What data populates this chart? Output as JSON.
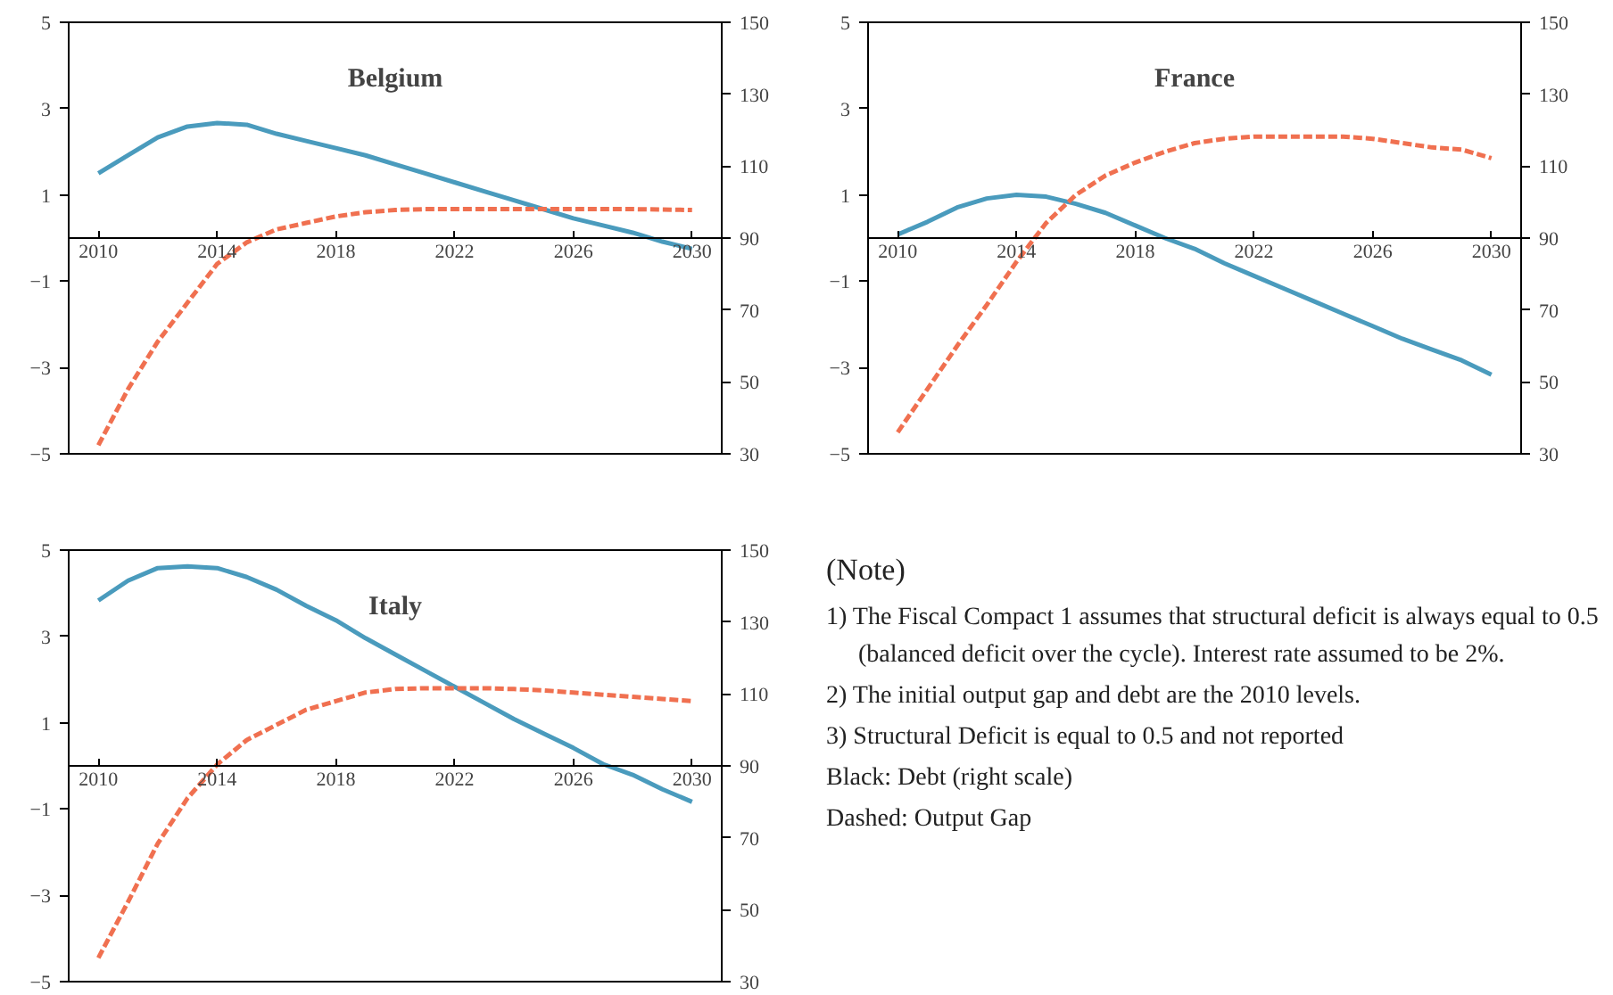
{
  "chart_data": [
    {
      "type": "line",
      "title": "Belgium",
      "x": [
        2010,
        2011,
        2012,
        2013,
        2014,
        2015,
        2016,
        2017,
        2018,
        2019,
        2020,
        2021,
        2022,
        2023,
        2024,
        2025,
        2026,
        2027,
        2028,
        2029,
        2030
      ],
      "xlim": [
        2009,
        2031
      ],
      "xticks": [
        2010,
        2014,
        2018,
        2022,
        2026,
        2030
      ],
      "ylim": [
        -5,
        5
      ],
      "yticks": [
        -5,
        -3,
        -1,
        1,
        3,
        5
      ],
      "y2lim": [
        30,
        150
      ],
      "y2ticks": [
        30,
        50,
        70,
        90,
        110,
        130,
        150
      ],
      "series": [
        {
          "color": "#4a9bbd",
          "axis": "y2",
          "line_style": "solid",
          "values": [
            108,
            113,
            118,
            121,
            122,
            121.5,
            119,
            117,
            115,
            113,
            110.5,
            108,
            105.5,
            103,
            100.5,
            98,
            95.5,
            93.5,
            91.5,
            89,
            87
          ]
        },
        {
          "color": "#f07050",
          "line_style": "dashed",
          "values": [
            -4.8,
            -3.5,
            -2.4,
            -1.5,
            -0.6,
            -0.1,
            0.2,
            0.35,
            0.5,
            0.6,
            0.65,
            0.67,
            0.67,
            0.67,
            0.67,
            0.67,
            0.67,
            0.67,
            0.67,
            0.66,
            0.65
          ]
        }
      ]
    },
    {
      "type": "line",
      "title": "France",
      "x": [
        2010,
        2011,
        2012,
        2013,
        2014,
        2015,
        2016,
        2017,
        2018,
        2019,
        2020,
        2021,
        2022,
        2023,
        2024,
        2025,
        2026,
        2027,
        2028,
        2029,
        2030
      ],
      "xlim": [
        2009,
        2031
      ],
      "xticks": [
        2010,
        2014,
        2018,
        2022,
        2026,
        2030
      ],
      "ylim": [
        -5,
        5
      ],
      "yticks": [
        -5,
        -3,
        -1,
        1,
        3,
        5
      ],
      "y2lim": [
        30,
        150
      ],
      "y2ticks": [
        30,
        50,
        70,
        90,
        110,
        130,
        150
      ],
      "series": [
        {
          "color": "#4a9bbd",
          "axis": "y2",
          "line_style": "solid",
          "values": [
            91,
            94.5,
            98.5,
            101,
            102,
            101.5,
            99.5,
            97,
            93.5,
            90,
            87,
            83,
            79.5,
            76,
            72.5,
            69,
            65.5,
            62,
            59,
            56,
            52
          ]
        },
        {
          "color": "#f07050",
          "line_style": "dashed",
          "values": [
            -4.5,
            -3.5,
            -2.5,
            -1.55,
            -0.55,
            0.35,
            1.0,
            1.45,
            1.75,
            2.0,
            2.2,
            2.3,
            2.35,
            2.35,
            2.35,
            2.35,
            2.3,
            2.2,
            2.1,
            2.05,
            1.85
          ]
        }
      ]
    },
    {
      "type": "line",
      "title": "Italy",
      "x": [
        2010,
        2011,
        2012,
        2013,
        2014,
        2015,
        2016,
        2017,
        2018,
        2019,
        2020,
        2021,
        2022,
        2023,
        2024,
        2025,
        2026,
        2027,
        2028,
        2029,
        2030
      ],
      "xlim": [
        2009,
        2031
      ],
      "xticks": [
        2010,
        2014,
        2018,
        2022,
        2026,
        2030
      ],
      "ylim": [
        -5,
        5
      ],
      "yticks": [
        -5,
        -3,
        -1,
        1,
        3,
        5
      ],
      "y2lim": [
        30,
        150
      ],
      "y2ticks": [
        30,
        50,
        70,
        90,
        110,
        130,
        150
      ],
      "series": [
        {
          "color": "#4a9bbd",
          "axis": "y2",
          "line_style": "solid",
          "values": [
            136,
            141.5,
            145,
            145.5,
            145,
            142.5,
            139,
            134.5,
            130.5,
            125.5,
            121,
            116.5,
            112,
            107.5,
            103,
            99,
            95,
            90.5,
            87.5,
            83.5,
            80
          ]
        },
        {
          "color": "#f07050",
          "line_style": "dashed",
          "values": [
            -4.45,
            -3.15,
            -1.8,
            -0.75,
            0.03,
            0.6,
            0.95,
            1.3,
            1.5,
            1.7,
            1.78,
            1.8,
            1.8,
            1.8,
            1.78,
            1.75,
            1.7,
            1.65,
            1.6,
            1.55,
            1.5
          ]
        }
      ]
    },
    {
      "type": "other",
      "title": "(Note)",
      "annotations": [
        "1) The Fiscal Compact 1 assumes that structural deficit is always equal to 0.5 (balanced deficit over the cycle). Interest rate assumed to be 2%.",
        "2) The initial output gap and debt are the 2010 levels.",
        "3) Structural Deficit is equal to 0.5 and not reported",
        "Black: Debt (right scale)",
        "Dashed: Output Gap"
      ]
    }
  ]
}
